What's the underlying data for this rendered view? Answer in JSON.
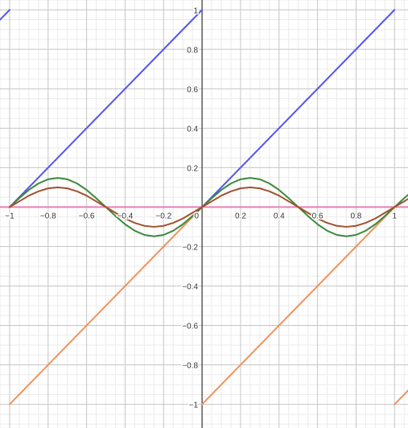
{
  "chart_data": {
    "type": "line",
    "xlim": [
      -1.05,
      1.07
    ],
    "ylim": [
      -1.12,
      1.05
    ],
    "grid": true,
    "x_ticks": [
      {
        "value": -1,
        "label": "−1"
      },
      {
        "value": -0.8,
        "label": "−0.8"
      },
      {
        "value": -0.6,
        "label": "−0.6"
      },
      {
        "value": -0.4,
        "label": "−0.4"
      },
      {
        "value": -0.2,
        "label": "−0.2"
      },
      {
        "value": 0,
        "label": "0"
      },
      {
        "value": 0.2,
        "label": "0.2"
      },
      {
        "value": 0.4,
        "label": "0.4"
      },
      {
        "value": 0.6,
        "label": "0.6"
      },
      {
        "value": 0.8,
        "label": "0.8"
      },
      {
        "value": 1,
        "label": "1"
      }
    ],
    "y_ticks": [
      {
        "value": 1,
        "label": "1"
      },
      {
        "value": 0.8,
        "label": "0.8"
      },
      {
        "value": 0.6,
        "label": "0.6"
      },
      {
        "value": 0.4,
        "label": "0.4"
      },
      {
        "value": 0.2,
        "label": "0.2"
      },
      {
        "value": -0.2,
        "label": "−0.2"
      },
      {
        "value": -0.4,
        "label": "−0.4"
      },
      {
        "value": -0.6,
        "label": "−0.6"
      },
      {
        "value": -0.8,
        "label": "−0.8"
      },
      {
        "value": -1,
        "label": "−1"
      }
    ],
    "series": [
      {
        "color": "#5555ee",
        "points": [
          [
            -1.05,
            0.95
          ],
          [
            -1,
            1
          ]
        ]
      },
      {
        "color": "#5555ee",
        "points": [
          [
            -1,
            0
          ],
          [
            0,
            1
          ]
        ]
      },
      {
        "color": "#5555ee",
        "points": [
          [
            0,
            0
          ],
          [
            1,
            1
          ]
        ]
      },
      {
        "color": "#f0935a",
        "points": [
          [
            -1,
            -1
          ],
          [
            0,
            0
          ]
        ]
      },
      {
        "color": "#f0935a",
        "points": [
          [
            0,
            -1
          ],
          [
            1,
            0
          ]
        ]
      },
      {
        "color": "#f0935a",
        "points": [
          [
            1,
            -1
          ],
          [
            1.07,
            -0.93
          ]
        ]
      },
      {
        "color": "#e67fb8",
        "points": [
          [
            -1.05,
            0
          ],
          [
            1.07,
            0
          ]
        ]
      },
      {
        "color": "#3a8a3a",
        "points": [
          [
            -1.0,
            0.0
          ],
          [
            -0.95,
            0.045
          ],
          [
            -0.9,
            0.087
          ],
          [
            -0.85,
            0.12
          ],
          [
            -0.8,
            0.141
          ],
          [
            -0.75,
            0.148
          ],
          [
            -0.7,
            0.141
          ],
          [
            -0.65,
            0.12
          ],
          [
            -0.6,
            0.087
          ],
          [
            -0.55,
            0.045
          ],
          [
            -0.5,
            0.0
          ],
          [
            -0.45,
            -0.045
          ],
          [
            -0.4,
            -0.087
          ],
          [
            -0.35,
            -0.12
          ],
          [
            -0.3,
            -0.141
          ],
          [
            -0.25,
            -0.148
          ],
          [
            -0.2,
            -0.141
          ],
          [
            -0.15,
            -0.12
          ],
          [
            -0.1,
            -0.087
          ],
          [
            -0.05,
            -0.045
          ],
          [
            0.0,
            0.0
          ],
          [
            0.05,
            0.045
          ],
          [
            0.1,
            0.087
          ],
          [
            0.15,
            0.12
          ],
          [
            0.2,
            0.141
          ],
          [
            0.25,
            0.148
          ],
          [
            0.3,
            0.141
          ],
          [
            0.35,
            0.12
          ],
          [
            0.4,
            0.087
          ],
          [
            0.45,
            0.045
          ],
          [
            0.5,
            0.0
          ],
          [
            0.55,
            -0.045
          ],
          [
            0.6,
            -0.087
          ],
          [
            0.65,
            -0.12
          ],
          [
            0.7,
            -0.141
          ],
          [
            0.75,
            -0.148
          ],
          [
            0.8,
            -0.141
          ],
          [
            0.85,
            -0.12
          ],
          [
            0.9,
            -0.087
          ],
          [
            0.95,
            -0.045
          ],
          [
            1.0,
            0.0
          ],
          [
            1.05,
            0.045
          ],
          [
            1.07,
            0.062
          ]
        ]
      },
      {
        "color": "#a0522d",
        "points": [
          [
            -1.0,
            0.0
          ],
          [
            -0.95,
            0.029
          ],
          [
            -0.9,
            0.058
          ],
          [
            -0.85,
            0.08
          ],
          [
            -0.8,
            0.095
          ],
          [
            -0.75,
            0.1
          ],
          [
            -0.7,
            0.095
          ],
          [
            -0.65,
            0.08
          ],
          [
            -0.6,
            0.058
          ],
          [
            -0.55,
            0.029
          ],
          [
            -0.5,
            0.0
          ],
          [
            -0.45,
            -0.029
          ],
          [
            -0.4,
            -0.058
          ],
          [
            -0.35,
            -0.08
          ],
          [
            -0.3,
            -0.095
          ],
          [
            -0.25,
            -0.1
          ],
          [
            -0.2,
            -0.095
          ],
          [
            -0.15,
            -0.08
          ],
          [
            -0.1,
            -0.058
          ],
          [
            -0.05,
            -0.029
          ],
          [
            0.0,
            0.0
          ],
          [
            0.05,
            0.029
          ],
          [
            0.1,
            0.058
          ],
          [
            0.15,
            0.08
          ],
          [
            0.2,
            0.095
          ],
          [
            0.25,
            0.1
          ],
          [
            0.3,
            0.095
          ],
          [
            0.35,
            0.08
          ],
          [
            0.4,
            0.058
          ],
          [
            0.45,
            0.029
          ],
          [
            0.5,
            0.0
          ],
          [
            0.55,
            -0.029
          ],
          [
            0.6,
            -0.058
          ],
          [
            0.65,
            -0.08
          ],
          [
            0.7,
            -0.095
          ],
          [
            0.75,
            -0.1
          ],
          [
            0.8,
            -0.095
          ],
          [
            0.85,
            -0.08
          ],
          [
            0.9,
            -0.058
          ],
          [
            0.95,
            -0.029
          ],
          [
            1.0,
            0.0
          ],
          [
            1.05,
            0.029
          ],
          [
            1.07,
            0.041
          ]
        ]
      }
    ]
  }
}
